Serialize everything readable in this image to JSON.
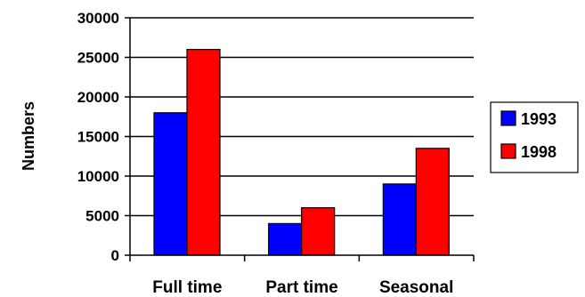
{
  "chart_data": {
    "type": "bar",
    "title": "",
    "xlabel": "",
    "ylabel": "Numbers",
    "categories": [
      "Full time",
      "Part time",
      "Seasonal"
    ],
    "series": [
      {
        "name": "1993",
        "values": [
          18000,
          4000,
          9000
        ],
        "color": "#0000ff"
      },
      {
        "name": "1998",
        "values": [
          26000,
          6000,
          13500
        ],
        "color": "#ff0000"
      }
    ],
    "ylim": [
      0,
      30000
    ],
    "yticks": [
      0,
      5000,
      10000,
      15000,
      20000,
      25000,
      30000
    ],
    "grid": true,
    "legend_position": "right"
  }
}
